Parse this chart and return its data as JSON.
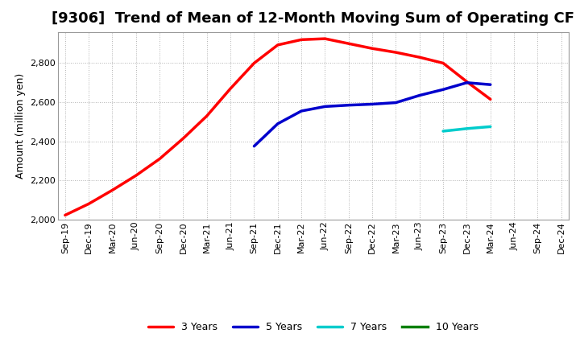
{
  "title": "[9306]  Trend of Mean of 12-Month Moving Sum of Operating CF",
  "ylabel": "Amount (million yen)",
  "ylim": [
    2000,
    2960
  ],
  "yticks": [
    2000,
    2200,
    2400,
    2600,
    2800
  ],
  "x_labels": [
    "Sep-19",
    "Dec-19",
    "Mar-20",
    "Jun-20",
    "Sep-20",
    "Dec-20",
    "Mar-21",
    "Jun-21",
    "Sep-21",
    "Dec-21",
    "Mar-22",
    "Jun-22",
    "Sep-22",
    "Dec-22",
    "Mar-23",
    "Jun-23",
    "Sep-23",
    "Dec-23",
    "Mar-24",
    "Jun-24",
    "Sep-24",
    "Dec-24"
  ],
  "series_3y": {
    "x": [
      0,
      1,
      2,
      3,
      4,
      5,
      6,
      7,
      8,
      9,
      10,
      11,
      12,
      13,
      14,
      15,
      16,
      17,
      18
    ],
    "y": [
      2022,
      2080,
      2150,
      2225,
      2310,
      2415,
      2530,
      2670,
      2800,
      2893,
      2920,
      2925,
      2900,
      2875,
      2855,
      2830,
      2800,
      2705,
      2615
    ],
    "color": "#FF0000",
    "label": "3 Years",
    "linewidth": 2.5
  },
  "series_5y": {
    "x": [
      8,
      9,
      10,
      11,
      12,
      13,
      14,
      15,
      16,
      17,
      18
    ],
    "y": [
      2375,
      2490,
      2555,
      2578,
      2585,
      2590,
      2598,
      2635,
      2665,
      2700,
      2690
    ],
    "color": "#0000CC",
    "label": "5 Years",
    "linewidth": 2.5
  },
  "series_7y": {
    "x": [
      16,
      17,
      18
    ],
    "y": [
      2452,
      2465,
      2475
    ],
    "color": "#00CCCC",
    "label": "7 Years",
    "linewidth": 2.5
  },
  "series_10y": {
    "x": [],
    "y": [],
    "color": "#008000",
    "label": "10 Years",
    "linewidth": 2.5
  },
  "background_color": "#FFFFFF",
  "grid_color": "#AAAAAA",
  "title_fontsize": 13,
  "axis_fontsize": 9,
  "tick_fontsize": 8,
  "legend_fontsize": 9
}
